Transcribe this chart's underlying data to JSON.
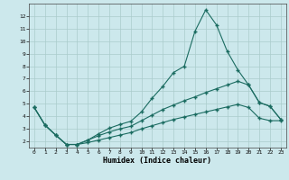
{
  "title": "",
  "xlabel": "Humidex (Indice chaleur)",
  "background_color": "#cce8ec",
  "grid_color": "#aacccc",
  "line_color": "#1a6b60",
  "xlim": [
    -0.5,
    23.5
  ],
  "ylim": [
    1.5,
    13.0
  ],
  "xticks": [
    0,
    1,
    2,
    3,
    4,
    5,
    6,
    7,
    8,
    9,
    10,
    11,
    12,
    13,
    14,
    15,
    16,
    17,
    18,
    19,
    20,
    21,
    22,
    23
  ],
  "yticks": [
    2,
    3,
    4,
    5,
    6,
    7,
    8,
    9,
    10,
    11,
    12
  ],
  "series1_x": [
    0,
    1,
    2,
    3,
    4,
    5,
    6,
    7,
    8,
    9,
    10,
    11,
    12,
    13,
    14,
    15,
    16,
    17,
    18,
    19,
    20,
    21,
    22,
    23
  ],
  "series1_y": [
    4.7,
    3.3,
    2.5,
    1.75,
    1.75,
    2.1,
    2.6,
    3.05,
    3.35,
    3.6,
    4.35,
    5.45,
    6.4,
    7.5,
    8.0,
    10.8,
    12.5,
    11.3,
    9.2,
    7.7,
    6.5,
    5.1,
    4.8,
    3.75
  ],
  "series2_x": [
    0,
    1,
    2,
    3,
    4,
    5,
    6,
    7,
    8,
    9,
    10,
    11,
    12,
    13,
    14,
    15,
    16,
    17,
    18,
    19,
    20,
    21,
    22,
    23
  ],
  "series2_y": [
    4.7,
    3.3,
    2.5,
    1.75,
    1.75,
    2.1,
    2.45,
    2.75,
    3.0,
    3.2,
    3.65,
    4.1,
    4.55,
    4.9,
    5.25,
    5.55,
    5.9,
    6.2,
    6.5,
    6.8,
    6.5,
    5.1,
    4.8,
    3.75
  ],
  "series3_x": [
    0,
    1,
    2,
    3,
    4,
    5,
    6,
    7,
    8,
    9,
    10,
    11,
    12,
    13,
    14,
    15,
    16,
    17,
    18,
    19,
    20,
    21,
    22,
    23
  ],
  "series3_y": [
    4.7,
    3.3,
    2.5,
    1.75,
    1.75,
    1.9,
    2.1,
    2.3,
    2.5,
    2.7,
    3.0,
    3.25,
    3.5,
    3.75,
    3.95,
    4.15,
    4.35,
    4.55,
    4.75,
    4.95,
    4.7,
    3.85,
    3.65,
    3.65
  ]
}
